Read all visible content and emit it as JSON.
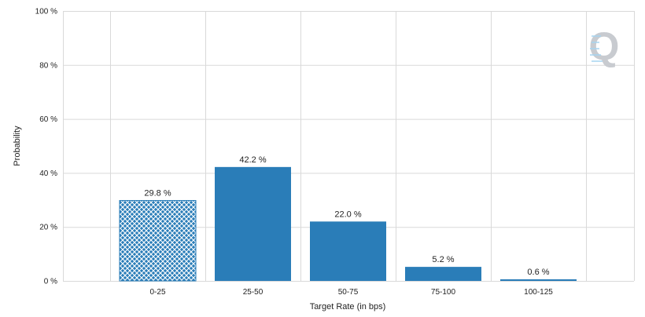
{
  "chart_data": {
    "type": "bar",
    "xlabel": "Target Rate (in bps)",
    "ylabel": "Probability",
    "categories": [
      "0-25",
      "25-50",
      "50-75",
      "75-100",
      "100-125"
    ],
    "values": [
      29.8,
      42.2,
      22.0,
      5.2,
      0.6
    ],
    "value_labels": [
      "29.8 %",
      "42.2 %",
      "22.0 %",
      "5.2 %",
      "0.6 %"
    ],
    "hatched_category": "0-25",
    "ylim": [
      0,
      100
    ],
    "yticks": [
      0,
      20,
      40,
      60,
      80,
      100
    ],
    "ytick_labels": [
      "0 %",
      "20 %",
      "40 %",
      "60 %",
      "80 %",
      "100 %"
    ],
    "grid": true,
    "bar_color": "#2a7db8",
    "grid_color": "#d9d9d9",
    "logo": "Q"
  }
}
